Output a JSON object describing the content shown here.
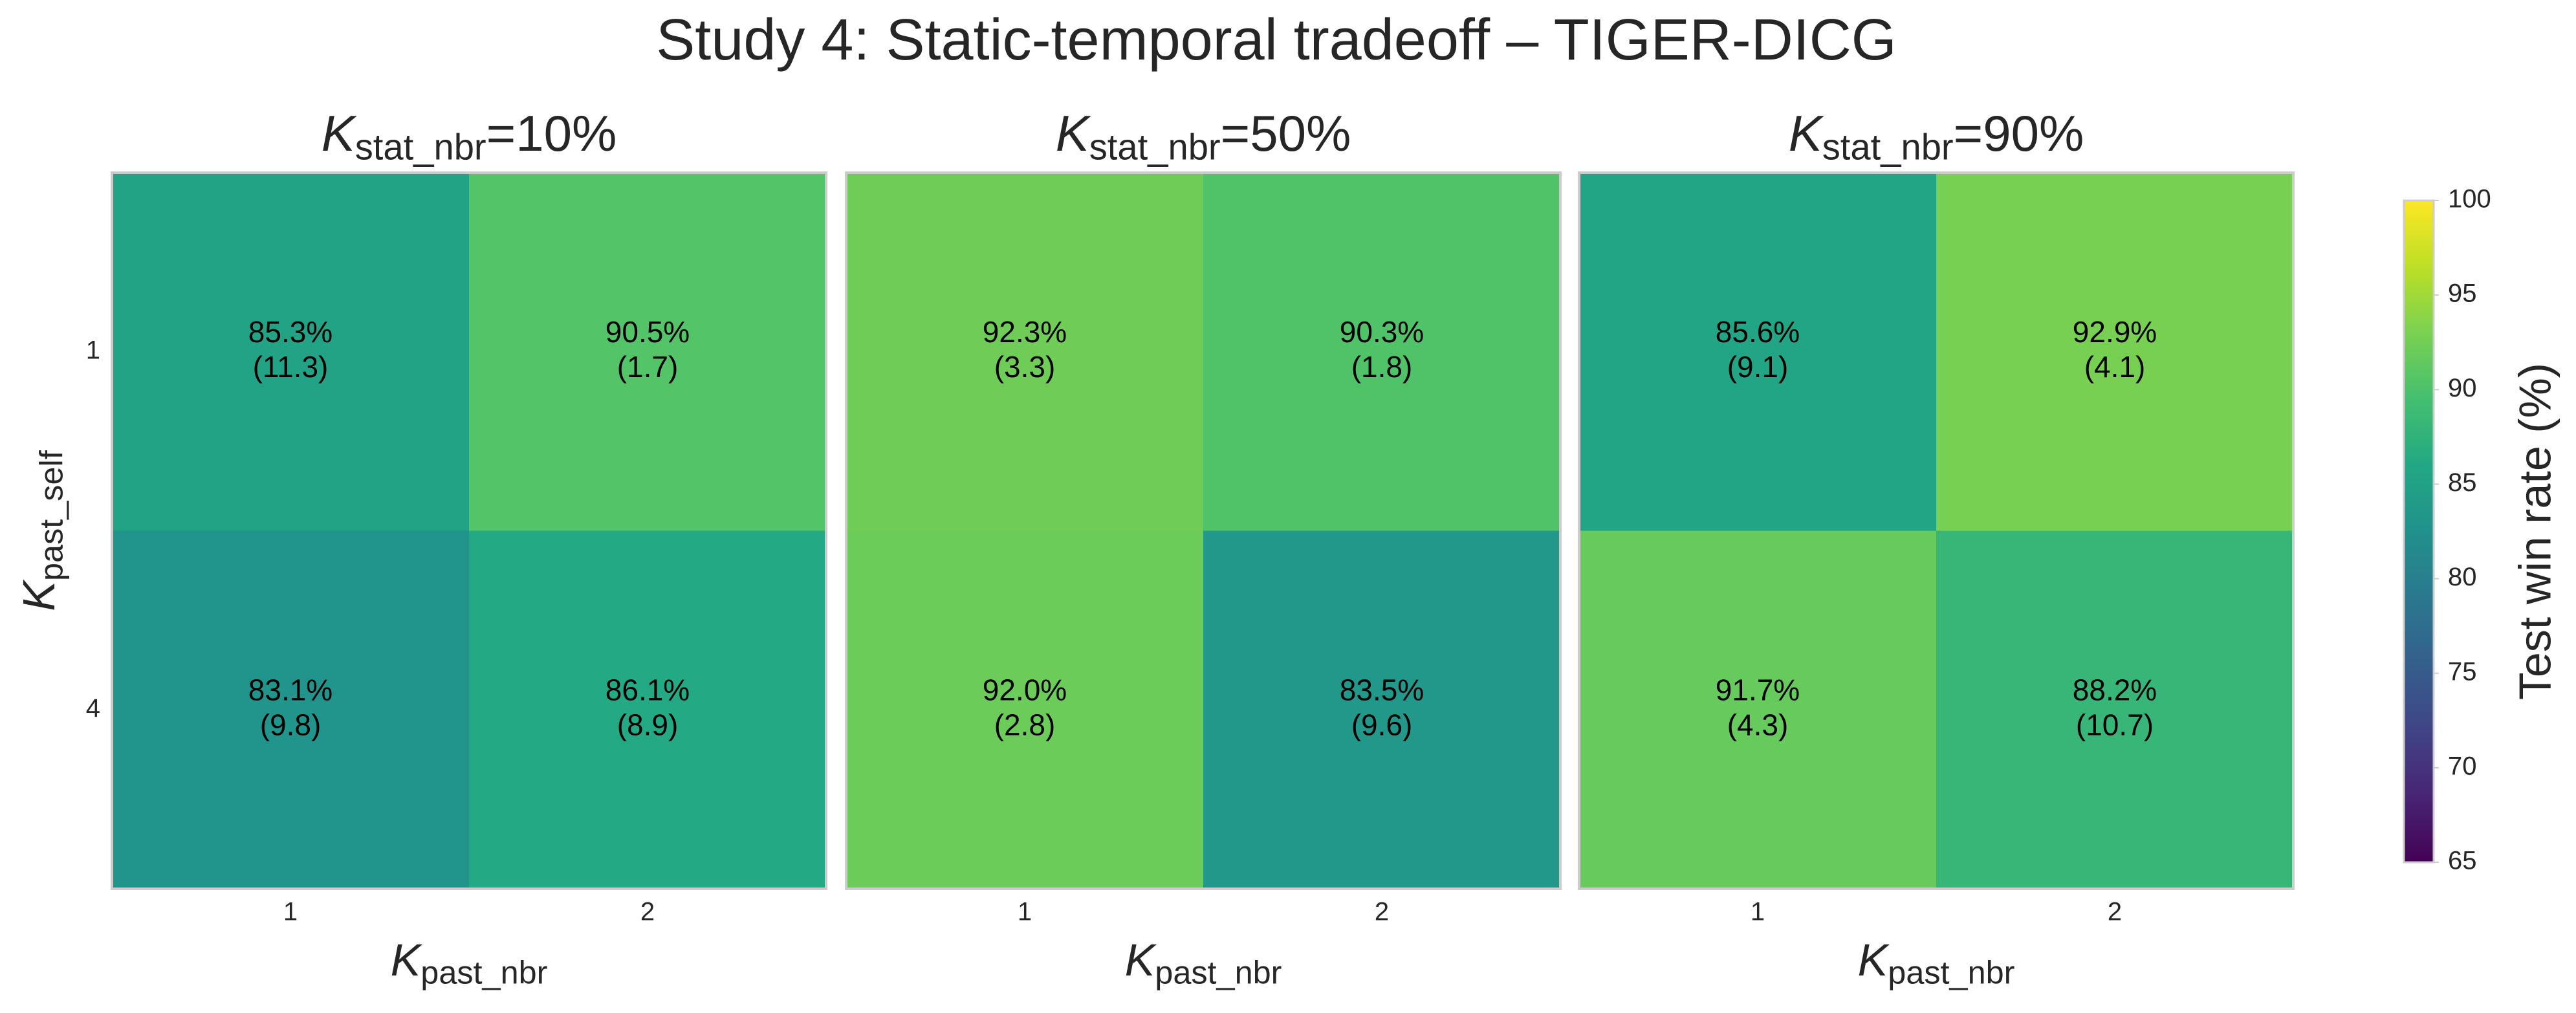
{
  "title": "Study 4: Static-temporal tradeoff – TIGER-DICG",
  "colorbar": {
    "label": "Test win rate (%)",
    "colormap": "viridis",
    "zlim": [
      65,
      100
    ],
    "zticks": [
      65,
      70,
      75,
      80,
      85,
      90,
      95,
      100
    ]
  },
  "chart_data": [
    {
      "type": "heatmap",
      "title": {
        "symbol": "K",
        "subscript": "stat_nbr",
        "suffix": "=10%"
      },
      "xlabel": {
        "symbol": "K",
        "subscript": "past_nbr"
      },
      "ylabel": {
        "symbol": "K",
        "subscript": "past_self"
      },
      "x": [
        "1",
        "2"
      ],
      "y": [
        "1",
        "4"
      ],
      "values": [
        [
          85.3,
          90.5
        ],
        [
          83.1,
          86.1
        ]
      ],
      "value_labels": [
        [
          "85.3%",
          "90.5%"
        ],
        [
          "83.1%",
          "86.1%"
        ]
      ],
      "errors": [
        [
          11.3,
          1.7
        ],
        [
          9.8,
          8.9
        ]
      ],
      "error_labels": [
        [
          "(11.3)",
          "(1.7)"
        ],
        [
          "(9.8)",
          "(8.9)"
        ]
      ]
    },
    {
      "type": "heatmap",
      "title": {
        "symbol": "K",
        "subscript": "stat_nbr",
        "suffix": "=50%"
      },
      "xlabel": {
        "symbol": "K",
        "subscript": "past_nbr"
      },
      "x": [
        "1",
        "2"
      ],
      "y": [
        "1",
        "4"
      ],
      "values": [
        [
          92.3,
          90.3
        ],
        [
          92.0,
          83.5
        ]
      ],
      "value_labels": [
        [
          "92.3%",
          "90.3%"
        ],
        [
          "92.0%",
          "83.5%"
        ]
      ],
      "errors": [
        [
          3.3,
          1.8
        ],
        [
          2.8,
          9.6
        ]
      ],
      "error_labels": [
        [
          "(3.3)",
          "(1.8)"
        ],
        [
          "(2.8)",
          "(9.6)"
        ]
      ]
    },
    {
      "type": "heatmap",
      "title": {
        "symbol": "K",
        "subscript": "stat_nbr",
        "suffix": "=90%"
      },
      "xlabel": {
        "symbol": "K",
        "subscript": "past_nbr"
      },
      "x": [
        "1",
        "2"
      ],
      "y": [
        "1",
        "4"
      ],
      "values": [
        [
          85.6,
          92.9
        ],
        [
          91.7,
          88.2
        ]
      ],
      "value_labels": [
        [
          "85.6%",
          "92.9%"
        ],
        [
          "91.7%",
          "88.2%"
        ]
      ],
      "errors": [
        [
          9.1,
          4.1
        ],
        [
          4.3,
          10.7
        ]
      ],
      "error_labels": [
        [
          "(9.1)",
          "(4.1)"
        ],
        [
          "(4.3)",
          "(10.7)"
        ]
      ]
    }
  ]
}
